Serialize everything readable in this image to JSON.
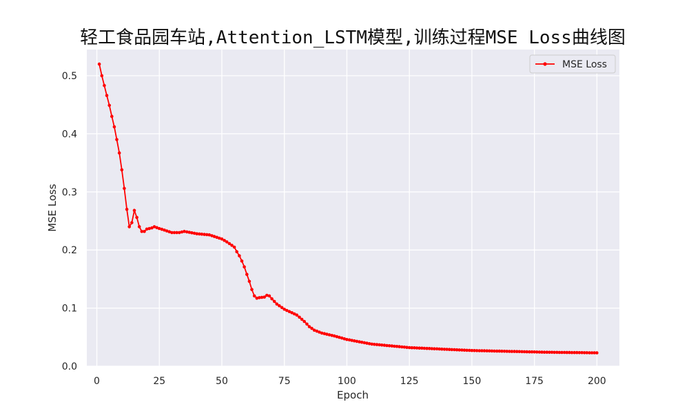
{
  "chart_data": {
    "type": "line",
    "title": "轻工食品园车站,Attention_LSTM模型,训练过程MSE Loss曲线图",
    "xlabel": "Epoch",
    "ylabel": "MSE Loss",
    "xlim": [
      -4,
      209
    ],
    "ylim": [
      0,
      0.545
    ],
    "xticks": [
      0,
      25,
      50,
      75,
      100,
      125,
      150,
      175,
      200
    ],
    "yticks": [
      0.0,
      0.1,
      0.2,
      0.3,
      0.4,
      0.5
    ],
    "xtick_labels": [
      "0",
      "25",
      "50",
      "75",
      "100",
      "125",
      "150",
      "175",
      "200"
    ],
    "ytick_labels": [
      "0.0",
      "0.1",
      "0.2",
      "0.3",
      "0.4",
      "0.5"
    ],
    "grid": true,
    "legend": "top-right",
    "colors": {
      "background": "#EAEAF2",
      "grid": "#FFFFFF",
      "line": "#FF0000"
    },
    "series": [
      {
        "name": "MSE Loss",
        "color": "#FF0000",
        "marker": "circle",
        "key_points": [
          [
            1,
            0.52
          ],
          [
            2,
            0.5
          ],
          [
            3,
            0.483
          ],
          [
            4,
            0.466
          ],
          [
            5,
            0.449
          ],
          [
            6,
            0.43
          ],
          [
            7,
            0.412
          ],
          [
            8,
            0.39
          ],
          [
            9,
            0.367
          ],
          [
            10,
            0.338
          ],
          [
            11,
            0.306
          ],
          [
            12,
            0.27
          ],
          [
            13,
            0.24
          ],
          [
            14,
            0.247
          ],
          [
            15,
            0.268
          ],
          [
            16,
            0.256
          ],
          [
            17,
            0.24
          ],
          [
            18,
            0.232
          ],
          [
            19,
            0.232
          ],
          [
            20,
            0.236
          ],
          [
            22,
            0.238
          ],
          [
            23,
            0.24
          ],
          [
            25,
            0.237
          ],
          [
            30,
            0.23
          ],
          [
            33,
            0.23
          ],
          [
            35,
            0.232
          ],
          [
            40,
            0.228
          ],
          [
            45,
            0.226
          ],
          [
            50,
            0.219
          ],
          [
            52,
            0.214
          ],
          [
            55,
            0.205
          ],
          [
            56,
            0.197
          ],
          [
            57,
            0.19
          ],
          [
            58,
            0.181
          ],
          [
            59,
            0.171
          ],
          [
            60,
            0.158
          ],
          [
            61,
            0.146
          ],
          [
            62,
            0.132
          ],
          [
            63,
            0.121
          ],
          [
            64,
            0.117
          ],
          [
            65,
            0.118
          ],
          [
            67,
            0.119
          ],
          [
            68,
            0.122
          ],
          [
            69,
            0.121
          ],
          [
            70,
            0.116
          ],
          [
            72,
            0.107
          ],
          [
            75,
            0.098
          ],
          [
            78,
            0.092
          ],
          [
            80,
            0.088
          ],
          [
            83,
            0.077
          ],
          [
            85,
            0.068
          ],
          [
            87,
            0.062
          ],
          [
            90,
            0.057
          ],
          [
            95,
            0.052
          ],
          [
            100,
            0.046
          ],
          [
            105,
            0.042
          ],
          [
            110,
            0.038
          ],
          [
            115,
            0.036
          ],
          [
            120,
            0.034
          ],
          [
            125,
            0.032
          ],
          [
            130,
            0.031
          ],
          [
            140,
            0.029
          ],
          [
            150,
            0.027
          ],
          [
            160,
            0.026
          ],
          [
            170,
            0.025
          ],
          [
            180,
            0.024
          ],
          [
            190,
            0.0235
          ],
          [
            200,
            0.023
          ]
        ]
      }
    ]
  }
}
